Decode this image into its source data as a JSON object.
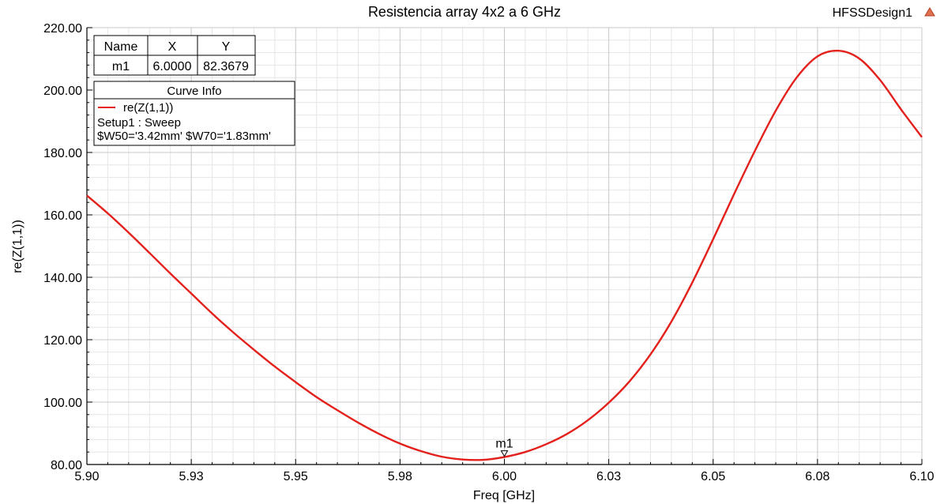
{
  "chart_data": {
    "type": "line",
    "title": "Resistencia array 4x2 a 6 GHz",
    "design_name": "HFSSDesign1",
    "xlabel": "Freq [GHz]",
    "ylabel": "re(Z(1,1))",
    "xlim": [
      5.9,
      6.1
    ],
    "ylim": [
      80,
      220
    ],
    "x_tick_labels": [
      "5.90",
      "5.93",
      "5.95",
      "5.98",
      "6.00",
      "6.03",
      "6.05",
      "6.08",
      "6.10"
    ],
    "x_tick_values": [
      5.9,
      5.925,
      5.95,
      5.975,
      6.0,
      6.025,
      6.05,
      6.075,
      6.1
    ],
    "y_tick_labels": [
      "80.00",
      "100.00",
      "120.00",
      "140.00",
      "160.00",
      "180.00",
      "200.00",
      "220.00"
    ],
    "y_tick_values": [
      80,
      100,
      120,
      140,
      160,
      180,
      200,
      220
    ],
    "grid": true,
    "series": [
      {
        "name": "re(Z(1,1))",
        "color": "#e3201b",
        "x": [
          5.9,
          5.905,
          5.91,
          5.915,
          5.92,
          5.925,
          5.93,
          5.935,
          5.94,
          5.945,
          5.95,
          5.955,
          5.96,
          5.965,
          5.97,
          5.975,
          5.98,
          5.985,
          5.99,
          5.995,
          6.0,
          6.005,
          6.01,
          6.015,
          6.02,
          6.025,
          6.03,
          6.035,
          6.04,
          6.045,
          6.05,
          6.055,
          6.06,
          6.065,
          6.07,
          6.075,
          6.08,
          6.085,
          6.09,
          6.095,
          6.1
        ],
        "y": [
          166.2,
          160.5,
          154.3,
          147.8,
          141.2,
          134.8,
          128.4,
          122.4,
          116.8,
          111.4,
          106.4,
          101.6,
          97.4,
          93.4,
          89.8,
          86.7,
          84.3,
          82.5,
          81.6,
          81.5,
          82.4,
          84.0,
          86.5,
          89.8,
          94.2,
          99.8,
          106.7,
          115.3,
          125.8,
          138.3,
          152.2,
          166.6,
          180.5,
          193.4,
          204.0,
          210.8,
          212.6,
          210.1,
          203.2,
          193.8,
          184.9
        ]
      }
    ],
    "marker": {
      "name": "m1",
      "x": 6.0,
      "y": 82.3679,
      "table": {
        "headers": [
          "Name",
          "X",
          "Y"
        ],
        "row": [
          "m1",
          "6.0000",
          "82.3679"
        ]
      }
    },
    "curve_info": {
      "title": "Curve Info",
      "series_label": "re(Z(1,1))",
      "line1": "Setup1 : Sweep",
      "line2": "$W50='3.42mm' $W70='1.83mm'"
    }
  }
}
